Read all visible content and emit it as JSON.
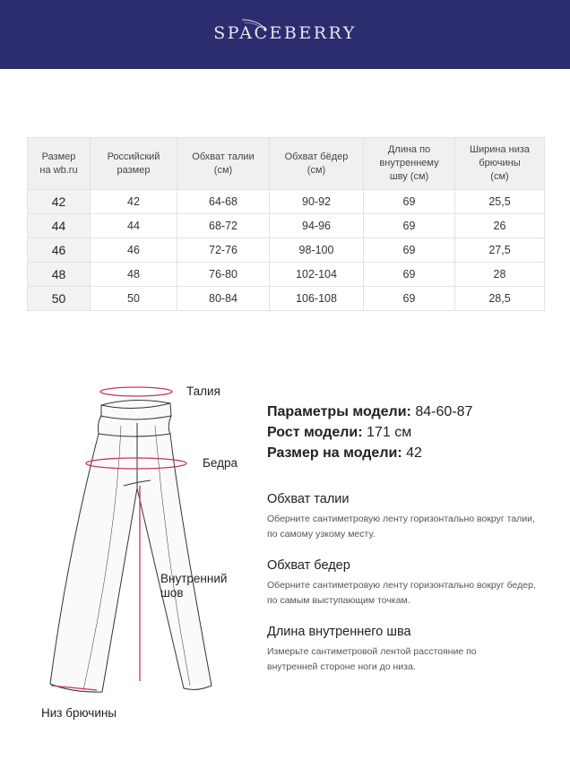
{
  "brand": "SPACEBERRY",
  "table": {
    "headers": [
      "Размер\nна wb.ru",
      "Российский\nразмер",
      "Обхват талии\n(см)",
      "Обхват бёдер\n(см)",
      "Длина по\nвнутреннему\nшву (см)",
      "Ширина низа\nбрючины\n(см)"
    ],
    "rows": [
      [
        "42",
        "42",
        "64-68",
        "90-92",
        "69",
        "25,5"
      ],
      [
        "44",
        "44",
        "68-72",
        "94-96",
        "69",
        "26"
      ],
      [
        "46",
        "46",
        "72-76",
        "98-100",
        "69",
        "27,5"
      ],
      [
        "48",
        "48",
        "76-80",
        "102-104",
        "69",
        "28"
      ],
      [
        "50",
        "50",
        "80-84",
        "106-108",
        "69",
        "28,5"
      ]
    ]
  },
  "diagram": {
    "waist": "Талия",
    "hips": "Бедра",
    "inseam": "Внутренний\nшов",
    "hem": "Низ брючины",
    "accent": "#c2365e"
  },
  "model": {
    "params_label": "Параметры модели:",
    "params_value": "84-60-87",
    "height_label": "Рост модели:",
    "height_value": "171 см",
    "size_label": "Размер на модели:",
    "size_value": "42"
  },
  "sections": [
    {
      "title": "Обхват талии",
      "text": "Оберните сантиметровую ленту горизонтально вокруг талии, по самому узкому месту."
    },
    {
      "title": "Обхват бедер",
      "text": "Оберните сантиметровую ленту горизонтально вокруг бедер, по самым выступающим точкам."
    },
    {
      "title": "Длина внутреннего шва",
      "text": "Измерьте сантиметровой лентой расстояние по внутренней стороне ноги до низа."
    }
  ]
}
